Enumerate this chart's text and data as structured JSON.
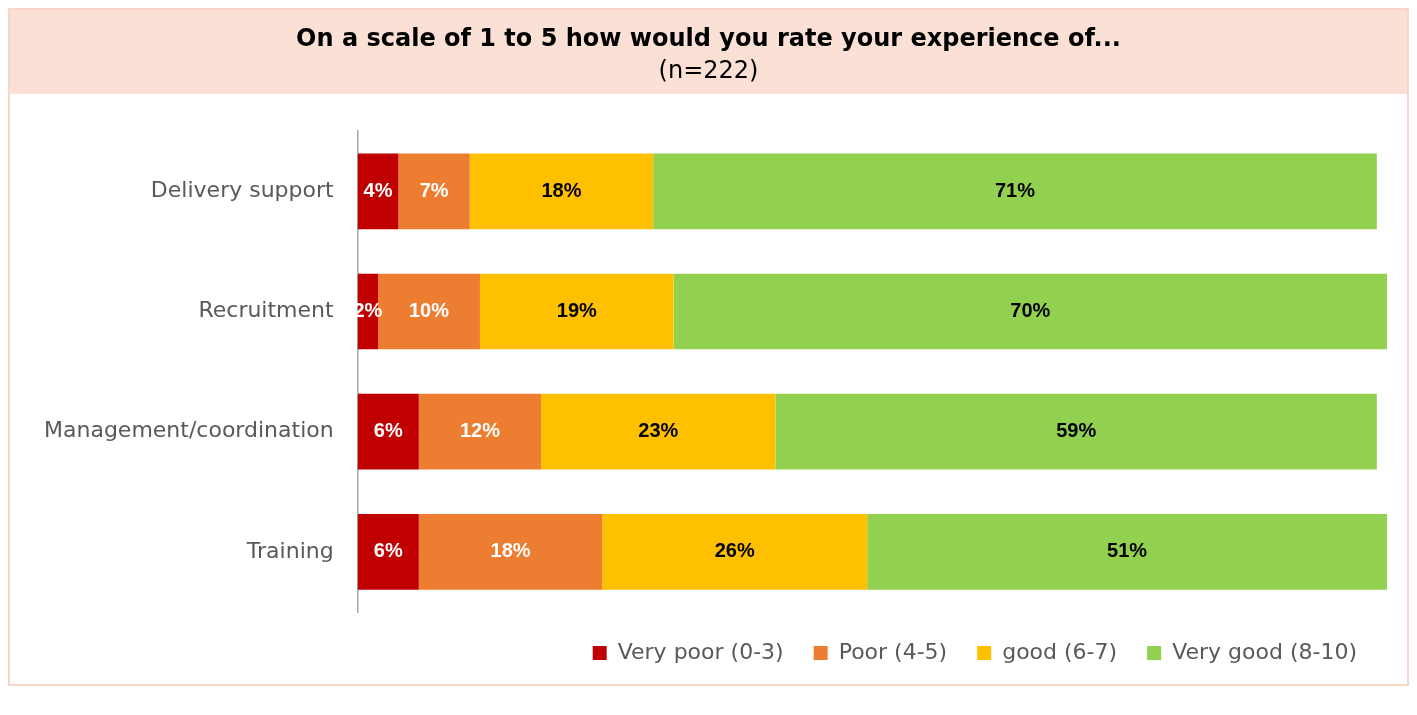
{
  "chart_data": {
    "type": "bar",
    "orientation": "horizontal",
    "stacked": true,
    "title": "On a scale of 1 to 5 how would you rate your experience of...",
    "subtitle": "(n=222)",
    "categories": [
      "Delivery support",
      "Recruitment",
      "Management/coordination",
      "Training"
    ],
    "series": [
      {
        "name": "Very poor (0-3)",
        "color": "#c00000",
        "values": [
          4,
          2,
          6,
          6
        ],
        "value_labels": [
          "4%",
          "2%",
          "6%",
          "6%"
        ]
      },
      {
        "name": "Poor (4-5)",
        "color": "#ed7d31",
        "values": [
          7,
          10,
          12,
          18
        ],
        "value_labels": [
          "7%",
          "10%",
          "12%",
          "18%"
        ]
      },
      {
        "name": "good (6-7)",
        "color": "#ffc000",
        "values": [
          18,
          19,
          23,
          26
        ],
        "value_labels": [
          "18%",
          "19%",
          "23%",
          "26%"
        ]
      },
      {
        "name": "Very good (8-10)",
        "color": "#92d050",
        "values": [
          71,
          70,
          59,
          51
        ],
        "value_labels": [
          "71%",
          "70%",
          "59%",
          "51%"
        ]
      }
    ],
    "legend": "bottom",
    "tick_labels": "y"
  }
}
